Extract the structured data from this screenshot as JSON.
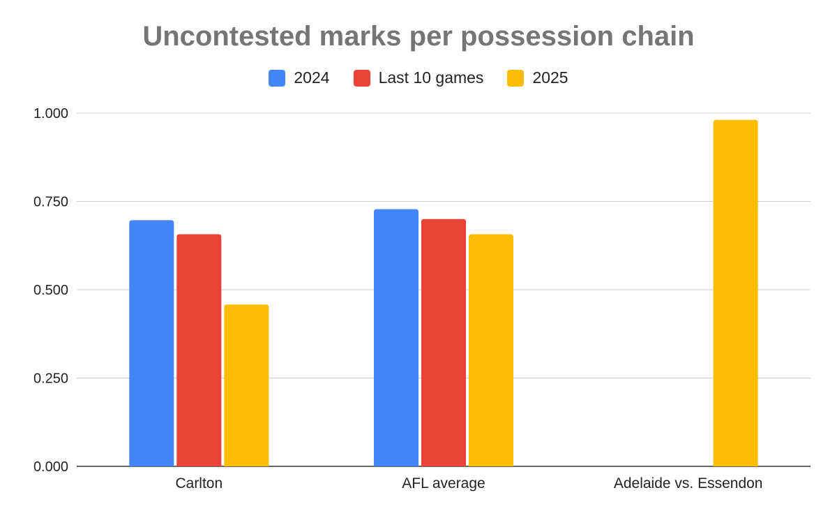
{
  "chart_data": {
    "type": "bar",
    "title": "Uncontested marks per possession chain",
    "categories": [
      "Carlton",
      "AFL average",
      "Adelaide vs. Essendon"
    ],
    "series": [
      {
        "name": "2024",
        "color": "#4285F4",
        "values": [
          0.697,
          0.728,
          null
        ]
      },
      {
        "name": "Last 10 games",
        "color": "#EA4335",
        "values": [
          0.657,
          0.7,
          null
        ]
      },
      {
        "name": "2025",
        "color": "#FBBC04",
        "values": [
          0.458,
          0.657,
          0.981
        ]
      }
    ],
    "yticks": [
      "0.000",
      "0.250",
      "0.500",
      "0.750",
      "1.000"
    ],
    "ylim": [
      0,
      1
    ],
    "xlabel": "",
    "ylabel": "",
    "grid": true,
    "legend_position": "top"
  }
}
